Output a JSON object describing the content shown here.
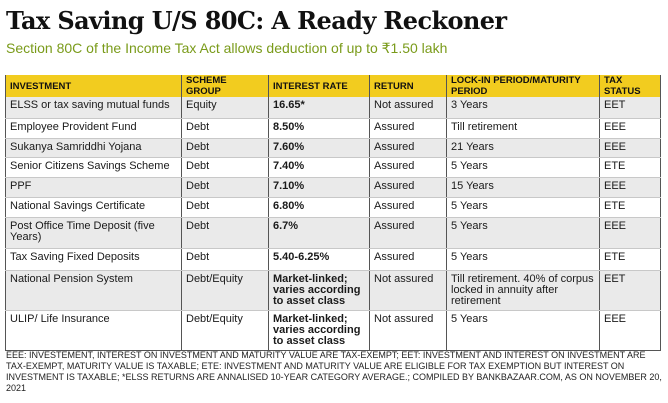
{
  "title": "Tax Saving U/S 80C: A Ready Reckoner",
  "subtitle": "Section 80C of the Income Tax Act allows deduction of up to ₹1.50 lakh",
  "table": {
    "headers": [
      "INVESTMENT",
      "SCHEME GROUP",
      "INTEREST RATE",
      "RETURN",
      "LOCK-IN PERIOD/MATURITY PERIOD",
      "TAX STATUS"
    ],
    "rows": [
      [
        "ELSS or tax saving mutual funds",
        "Equity",
        "16.65*",
        "Not assured",
        "3 Years",
        "EET"
      ],
      [
        "Employee Provident Fund",
        "Debt",
        "8.50%",
        "Assured",
        "Till retirement",
        "EEE"
      ],
      [
        "Sukanya Samriddhi Yojana",
        "Debt",
        "7.60%",
        "Assured",
        "21 Years",
        "EEE"
      ],
      [
        "Senior Citizens Savings Scheme",
        "Debt",
        "7.40%",
        "Assured",
        "5 Years",
        "ETE"
      ],
      [
        "PPF",
        "Debt",
        "7.10%",
        "Assured",
        "15 Years",
        "EEE"
      ],
      [
        "National Savings Certificate",
        "Debt",
        "6.80%",
        "Assured",
        "5 Years",
        "ETE"
      ],
      [
        "Post Office Time Deposit (five Years)",
        "Debt",
        "6.7%",
        "Assured",
        "5 Years",
        "EEE"
      ],
      [
        "Tax Saving Fixed Deposits",
        "Debt",
        "5.40-6.25%",
        "Assured",
        "5 Years",
        "ETE"
      ],
      [
        "National Pension System",
        "Debt/Equity",
        "Market-linked; varies according to asset class",
        "Not assured",
        "Till retirement. 40% of corpus locked in annuity after retirement",
        "EET"
      ],
      [
        "ULIP/ Life Insurance",
        "Debt/Equity",
        "Market-linked; varies according to asset class",
        "Not assured",
        "5 Years",
        "EEE"
      ]
    ]
  },
  "footnote": "EEE: INVESTEMENT, INTEREST ON INVESTMENT AND MATURITY VALUE ARE TAX-EXEMPT; EET: INVESTMENT AND INTEREST ON INVESTMENT ARE TAX-EXEMPT, MATURITY VALUE IS TAXABLE; ETE: INVESTMENT AND MATURITY VALUE ARE ELIGIBLE FOR TAX EXEMPTION BUT INTEREST ON INVESTMENT IS TAXABLE; *ELSS RETURNS ARE ANNALISED 10-YEAR CATEGORY AVERAGE.; COMPILED BY BANKBAZAAR.COM, AS ON NOVEMBER 20, 2021",
  "colors": {
    "header_bg": "#f2cc1f",
    "subtitle": "#7a9b1a",
    "stripe": "#eaeaea"
  }
}
